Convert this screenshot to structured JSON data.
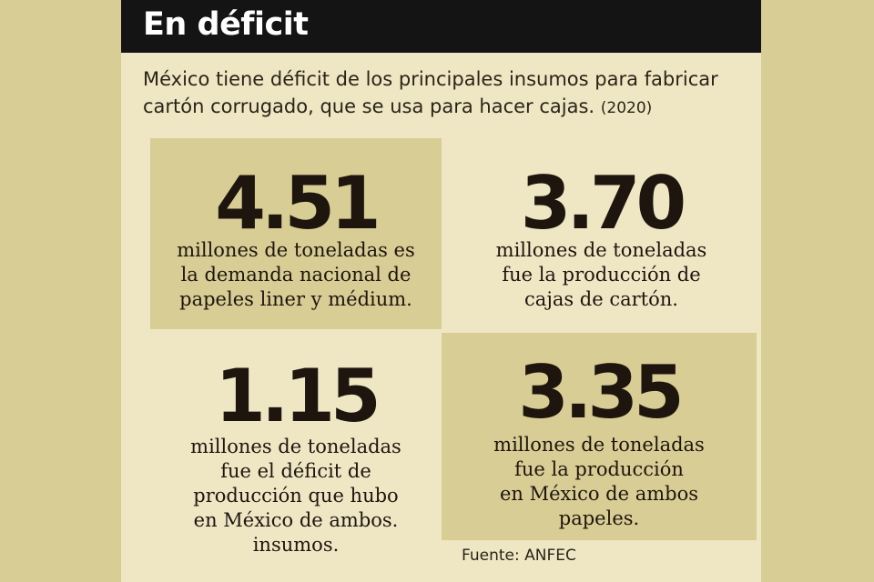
{
  "header": {
    "title": "En déficit"
  },
  "intro": {
    "line1": "México tiene déficit de los principales insumos para fabricar",
    "line2": "cartón corrugado, que se usa para hacer cajas.",
    "year": "(2020)"
  },
  "stats": [
    {
      "value": "4.51",
      "lines": [
        "millones de toneladas es",
        "la demanda nacional de",
        "papeles liner y médium."
      ]
    },
    {
      "value": "3.70",
      "lines": [
        "millones de toneladas",
        "fue la producción de",
        "cajas de cartón."
      ]
    },
    {
      "value": "1.15",
      "lines": [
        "millones de toneladas",
        "fue el déficit de",
        "producción que hubo",
        "en México de ambos.",
        "insumos."
      ]
    },
    {
      "value": "3.35",
      "lines": [
        "millones de toneladas",
        "fue la producción",
        "en México de ambos",
        "papeles."
      ]
    }
  ],
  "source": "Fuente: ANFEC",
  "colors": {
    "background": "#d8cd94",
    "panel": "#efe7c4",
    "header": "#141414",
    "text": "#1e150f"
  }
}
